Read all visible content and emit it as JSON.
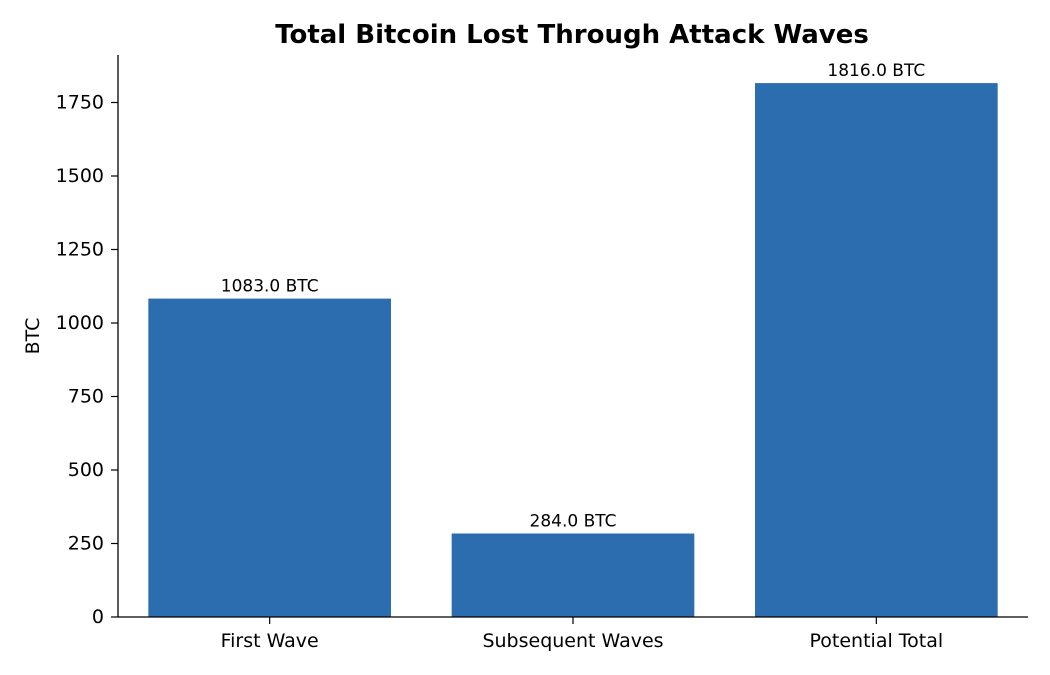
{
  "chart_data": {
    "type": "bar",
    "title": "Total Bitcoin Lost Through Attack Waves",
    "xlabel": "",
    "ylabel": "BTC",
    "categories": [
      "First Wave",
      "Subsequent Waves",
      "Potential Total"
    ],
    "values": [
      1083.0,
      284.0,
      1816.0
    ],
    "data_labels": [
      "1083.0 BTC",
      "284.0 BTC",
      "1816.0 BTC"
    ],
    "ylim": [
      0,
      1906.8
    ],
    "y_ticks": [
      0,
      250,
      500,
      750,
      1000,
      1250,
      1500,
      1750
    ],
    "grid": false,
    "legend": "none",
    "bar_color": "#2c6db0"
  }
}
